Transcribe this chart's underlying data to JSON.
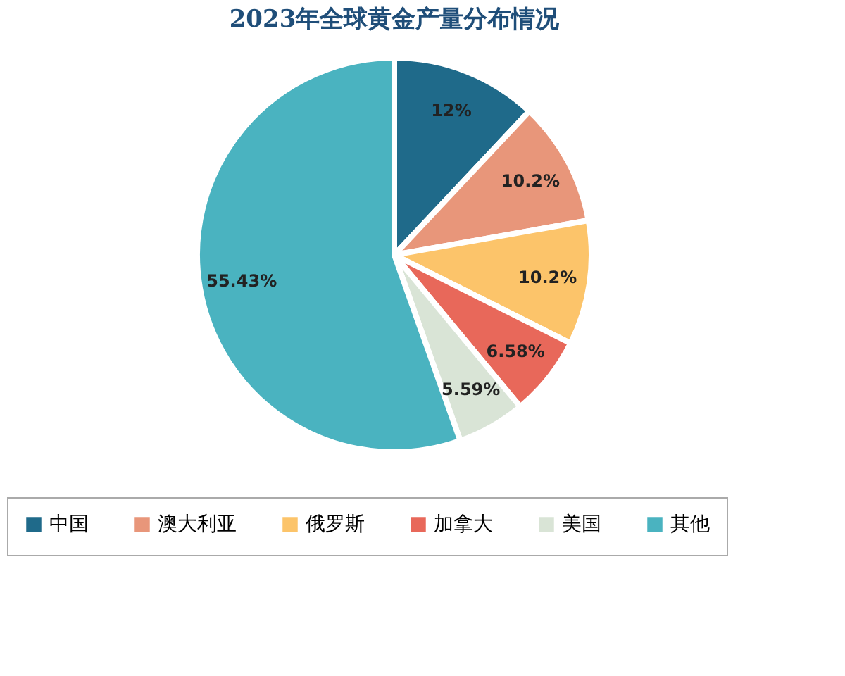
{
  "chart_data": {
    "type": "pie",
    "title": "2023年全球黄金产量分布情况",
    "categories": [
      "中国",
      "澳大利亚",
      "俄罗斯",
      "加拿大",
      "美国",
      "其他"
    ],
    "values": [
      12,
      10.2,
      10.2,
      6.58,
      5.59,
      55.43
    ],
    "colors": [
      "#1f6a8a",
      "#e8967a",
      "#fcc46a",
      "#e8685a",
      "#d9e4d6",
      "#4ab3c0"
    ],
    "value_labels": [
      "12%",
      "10.2%",
      "10.2%",
      "6.58%",
      "5.59%",
      "55.43%"
    ],
    "legend": "bottom"
  }
}
